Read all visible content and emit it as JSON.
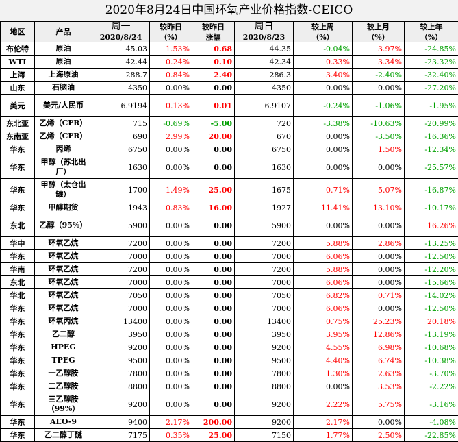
{
  "title": "2020年8月24日中国环氧产业价格指数-CEICO",
  "header": {
    "region": "地区",
    "product": "产品",
    "mon": "周一",
    "mon_date": "2020/8/24",
    "vs_yesterday": "较昨日",
    "vs_yesterday_unit": "（%）",
    "vs_yesterday2": "较昨日",
    "change": "涨幅",
    "sun": "周日",
    "sun_date": "2020/8/23",
    "vs_last_week": "较上周",
    "vs_last_week_unit": "（%）",
    "vs_last_month": "较上月",
    "vs_last_month_unit": "（%）",
    "vs_last_year": "较上年",
    "vs_last_year_unit": "（%）"
  },
  "colors": {
    "up": "#ff0000",
    "down": "#00a000",
    "neutral": "#000000"
  },
  "rows": [
    {
      "region": "布伦特",
      "product": "原油",
      "mon": "45.03",
      "pct": "1.53%",
      "pct_c": "red",
      "chg": "0.68",
      "chg_c": "red",
      "sun": "44.35",
      "week": "-0.04%",
      "week_c": "green",
      "month": "3.97%",
      "month_c": "red",
      "year": "-24.85%",
      "year_c": "green",
      "tall": false
    },
    {
      "region": "WTI",
      "product": "原油",
      "mon": "42.44",
      "pct": "0.24%",
      "pct_c": "red",
      "chg": "0.10",
      "chg_c": "red",
      "sun": "42.34",
      "week": "0.33%",
      "week_c": "red",
      "month": "3.34%",
      "month_c": "red",
      "year": "-23.32%",
      "year_c": "green",
      "tall": false
    },
    {
      "region": "上海",
      "product": "上海原油",
      "mon": "288.7",
      "pct": "0.84%",
      "pct_c": "red",
      "chg": "2.40",
      "chg_c": "red",
      "sun": "286.3",
      "week": "3.40%",
      "week_c": "red",
      "month": "-2.40%",
      "month_c": "green",
      "year": "-32.40%",
      "year_c": "green",
      "tall": false
    },
    {
      "region": "山东",
      "product": "石脑油",
      "mon": "4350",
      "pct": "0.00%",
      "pct_c": "",
      "chg": "0.00",
      "chg_c": "",
      "sun": "4350",
      "week": "0.00%",
      "week_c": "",
      "month": "0.00%",
      "month_c": "",
      "year": "-27.20%",
      "year_c": "green",
      "tall": false
    },
    {
      "region": "美元",
      "product": "美元/人民币",
      "mon": "6.9194",
      "pct": "0.13%",
      "pct_c": "red",
      "chg": "0.01",
      "chg_c": "red",
      "sun": "6.9107",
      "week": "-0.24%",
      "week_c": "green",
      "month": "-1.06%",
      "month_c": "green",
      "year": "-1.95%",
      "year_c": "green",
      "tall": true
    },
    {
      "region": "东北亚",
      "product": "乙烯（CFR）",
      "mon": "715",
      "pct": "-0.69%",
      "pct_c": "green",
      "chg": "-5.00",
      "chg_c": "green",
      "sun": "720",
      "week": "-3.38%",
      "week_c": "green",
      "month": "-10.63%",
      "month_c": "green",
      "year": "-20.99%",
      "year_c": "green",
      "tall": false
    },
    {
      "region": "东南亚",
      "product": "乙烯（CFR）",
      "mon": "690",
      "pct": "2.99%",
      "pct_c": "red",
      "chg": "20.00",
      "chg_c": "red",
      "sun": "670",
      "week": "0.00%",
      "week_c": "",
      "month": "-3.50%",
      "month_c": "green",
      "year": "-16.36%",
      "year_c": "green",
      "tall": false
    },
    {
      "region": "华东",
      "product": "丙烯",
      "mon": "6750",
      "pct": "0.00%",
      "pct_c": "",
      "chg": "0.00",
      "chg_c": "",
      "sun": "6750",
      "week": "0.00%",
      "week_c": "",
      "month": "1.50%",
      "month_c": "red",
      "year": "-12.34%",
      "year_c": "green",
      "tall": false
    },
    {
      "region": "华东",
      "product": "甲醇（苏北出厂）",
      "mon": "1630",
      "pct": "0.00%",
      "pct_c": "",
      "chg": "0.00",
      "chg_c": "",
      "sun": "1630",
      "week": "0.00%",
      "week_c": "",
      "month": "0.00%",
      "month_c": "",
      "year": "-25.57%",
      "year_c": "green",
      "tall": true
    },
    {
      "region": "华东",
      "product": "甲醇（太仓出罐）",
      "mon": "1700",
      "pct": "1.49%",
      "pct_c": "red",
      "chg": "25.00",
      "chg_c": "red",
      "sun": "1675",
      "week": "0.71%",
      "week_c": "red",
      "month": "5.07%",
      "month_c": "red",
      "year": "-16.87%",
      "year_c": "green",
      "tall": true
    },
    {
      "region": "华东",
      "product": "甲醇期货",
      "mon": "1943",
      "pct": "0.83%",
      "pct_c": "red",
      "chg": "16.00",
      "chg_c": "red",
      "sun": "1927",
      "week": "11.41%",
      "week_c": "red",
      "month": "13.10%",
      "month_c": "red",
      "year": "-10.17%",
      "year_c": "green",
      "tall": false
    },
    {
      "region": "东北",
      "product": "乙醇（95%）",
      "mon": "5900",
      "pct": "0.00%",
      "pct_c": "",
      "chg": "0.00",
      "chg_c": "",
      "sun": "5900",
      "week": "0.00%",
      "week_c": "",
      "month": "0.00%",
      "month_c": "",
      "year": "16.26%",
      "year_c": "red",
      "tall": true
    },
    {
      "region": "华中",
      "product": "环氧乙烷",
      "mon": "7200",
      "pct": "0.00%",
      "pct_c": "",
      "chg": "0.00",
      "chg_c": "",
      "sun": "7200",
      "week": "5.88%",
      "week_c": "red",
      "month": "2.86%",
      "month_c": "red",
      "year": "-13.25%",
      "year_c": "green",
      "tall": false
    },
    {
      "region": "华东",
      "product": "环氧乙烷",
      "mon": "7000",
      "pct": "0.00%",
      "pct_c": "",
      "chg": "0.00",
      "chg_c": "",
      "sun": "7000",
      "week": "6.06%",
      "week_c": "red",
      "month": "0.00%",
      "month_c": "",
      "year": "-12.50%",
      "year_c": "green",
      "tall": false
    },
    {
      "region": "华南",
      "product": "环氧乙烷",
      "mon": "7200",
      "pct": "0.00%",
      "pct_c": "",
      "chg": "0.00",
      "chg_c": "",
      "sun": "7200",
      "week": "5.88%",
      "week_c": "red",
      "month": "0.00%",
      "month_c": "",
      "year": "-12.20%",
      "year_c": "green",
      "tall": false
    },
    {
      "region": "东北",
      "product": "环氧乙烷",
      "mon": "7000",
      "pct": "0.00%",
      "pct_c": "",
      "chg": "0.00",
      "chg_c": "",
      "sun": "7000",
      "week": "6.06%",
      "week_c": "red",
      "month": "0.00%",
      "month_c": "",
      "year": "-15.66%",
      "year_c": "green",
      "tall": false
    },
    {
      "region": "华北",
      "product": "环氧乙烷",
      "mon": "7050",
      "pct": "0.00%",
      "pct_c": "",
      "chg": "0.00",
      "chg_c": "",
      "sun": "7050",
      "week": "6.82%",
      "week_c": "red",
      "month": "0.71%",
      "month_c": "red",
      "year": "-14.02%",
      "year_c": "green",
      "tall": false
    },
    {
      "region": "华东",
      "product": "环氧乙烷",
      "mon": "7000",
      "pct": "0.00%",
      "pct_c": "",
      "chg": "0.00",
      "chg_c": "",
      "sun": "7000",
      "week": "6.06%",
      "week_c": "red",
      "month": "0.00%",
      "month_c": "",
      "year": "-12.50%",
      "year_c": "green",
      "tall": false
    },
    {
      "region": "华东",
      "product": "环氧丙烷",
      "mon": "13400",
      "pct": "0.00%",
      "pct_c": "",
      "chg": "0.00",
      "chg_c": "",
      "sun": "13400",
      "week": "0.75%",
      "week_c": "red",
      "month": "25.23%",
      "month_c": "red",
      "year": "20.18%",
      "year_c": "red",
      "tall": false
    },
    {
      "region": "华东",
      "product": "乙二醇",
      "mon": "3950",
      "pct": "0.00%",
      "pct_c": "",
      "chg": "0.00",
      "chg_c": "",
      "sun": "3950",
      "week": "3.95%",
      "week_c": "red",
      "month": "12.86%",
      "month_c": "red",
      "year": "-13.19%",
      "year_c": "green",
      "tall": false
    },
    {
      "region": "华东",
      "product": "HPEG",
      "mon": "9200",
      "pct": "0.00%",
      "pct_c": "",
      "chg": "0.00",
      "chg_c": "",
      "sun": "9200",
      "week": "4.55%",
      "week_c": "red",
      "month": "6.98%",
      "month_c": "red",
      "year": "-10.68%",
      "year_c": "green",
      "tall": false
    },
    {
      "region": "华东",
      "product": "TPEG",
      "mon": "9500",
      "pct": "0.00%",
      "pct_c": "",
      "chg": "0.00",
      "chg_c": "",
      "sun": "9500",
      "week": "4.40%",
      "week_c": "red",
      "month": "6.74%",
      "month_c": "red",
      "year": "-10.38%",
      "year_c": "green",
      "tall": false
    },
    {
      "region": "华东",
      "product": "一乙醇胺",
      "mon": "7800",
      "pct": "0.00%",
      "pct_c": "",
      "chg": "0.00",
      "chg_c": "",
      "sun": "7800",
      "week": "1.30%",
      "week_c": "red",
      "month": "2.63%",
      "month_c": "red",
      "year": "-3.70%",
      "year_c": "green",
      "tall": false
    },
    {
      "region": "华东",
      "product": "二乙醇胺",
      "mon": "8800",
      "pct": "0.00%",
      "pct_c": "",
      "chg": "0.00",
      "chg_c": "",
      "sun": "8800",
      "week": "0.00%",
      "week_c": "",
      "month": "3.53%",
      "month_c": "red",
      "year": "-2.22%",
      "year_c": "green",
      "tall": false
    },
    {
      "region": "华东",
      "product": "三乙醇胺（99%）",
      "mon": "9200",
      "pct": "0.00%",
      "pct_c": "",
      "chg": "0.00",
      "chg_c": "",
      "sun": "9200",
      "week": "2.22%",
      "week_c": "red",
      "month": "5.75%",
      "month_c": "red",
      "year": "-3.16%",
      "year_c": "green",
      "tall": true
    },
    {
      "region": "华东",
      "product": "AEO-9",
      "mon": "9400",
      "pct": "2.17%",
      "pct_c": "red",
      "chg": "200.00",
      "chg_c": "red",
      "sun": "9200",
      "week": "2.17%",
      "week_c": "red",
      "month": "0.00%",
      "month_c": "",
      "year": "-4.08%",
      "year_c": "green",
      "tall": false
    },
    {
      "region": "华东",
      "product": "乙二醇丁醚",
      "mon": "7175",
      "pct": "0.35%",
      "pct_c": "red",
      "chg": "25.00",
      "chg_c": "red",
      "sun": "7150",
      "week": "1.77%",
      "week_c": "red",
      "month": "2.50%",
      "month_c": "red",
      "year": "-22.85%",
      "year_c": "green",
      "tall": false
    }
  ]
}
